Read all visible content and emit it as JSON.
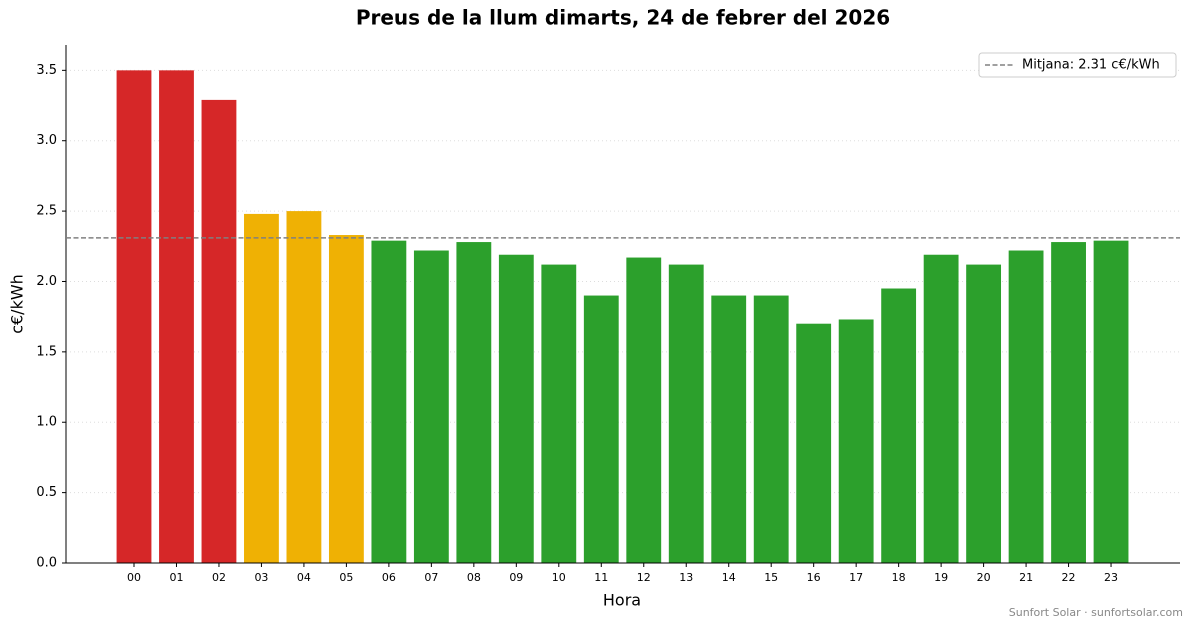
{
  "chart_data": {
    "type": "bar",
    "title": "Preus de la llum dimarts, 24 de febrer del 2026",
    "x_label": "Hora",
    "y_label": "c€/kWh",
    "categories": [
      "00",
      "01",
      "02",
      "03",
      "04",
      "05",
      "06",
      "07",
      "08",
      "09",
      "10",
      "11",
      "12",
      "13",
      "14",
      "15",
      "16",
      "17",
      "18",
      "19",
      "20",
      "21",
      "22",
      "23"
    ],
    "values": [
      3.5,
      3.5,
      3.29,
      2.48,
      2.5,
      2.33,
      2.29,
      2.22,
      2.28,
      2.19,
      2.12,
      1.9,
      2.17,
      2.12,
      1.9,
      1.9,
      1.7,
      1.73,
      1.95,
      2.19,
      2.12,
      2.22,
      2.28,
      2.29
    ],
    "colors": [
      "#d62728",
      "#d62728",
      "#d62728",
      "#efb104",
      "#efb104",
      "#efb104",
      "#2ca02c",
      "#2ca02c",
      "#2ca02c",
      "#2ca02c",
      "#2ca02c",
      "#2ca02c",
      "#2ca02c",
      "#2ca02c",
      "#2ca02c",
      "#2ca02c",
      "#2ca02c",
      "#2ca02c",
      "#2ca02c",
      "#2ca02c",
      "#2ca02c",
      "#2ca02c",
      "#2ca02c",
      "#2ca02c"
    ],
    "mean": 2.31,
    "mean_label": "Mitjana: 2.31 c€/kWh",
    "mean_color": "#808080",
    "ylim": [
      0,
      3.68
    ],
    "yticks": [
      {
        "value": 0,
        "label": "0.0"
      },
      0.5,
      {
        "value": 1,
        "label": "1.0"
      },
      1.5,
      {
        "value": 2,
        "label": "2.0"
      },
      2.5,
      {
        "value": 3,
        "label": "3.0"
      },
      3.5
    ],
    "grid": true,
    "legend_position": "upper-right",
    "footer": "Sunfort Solar · sunfortsolar.com"
  }
}
